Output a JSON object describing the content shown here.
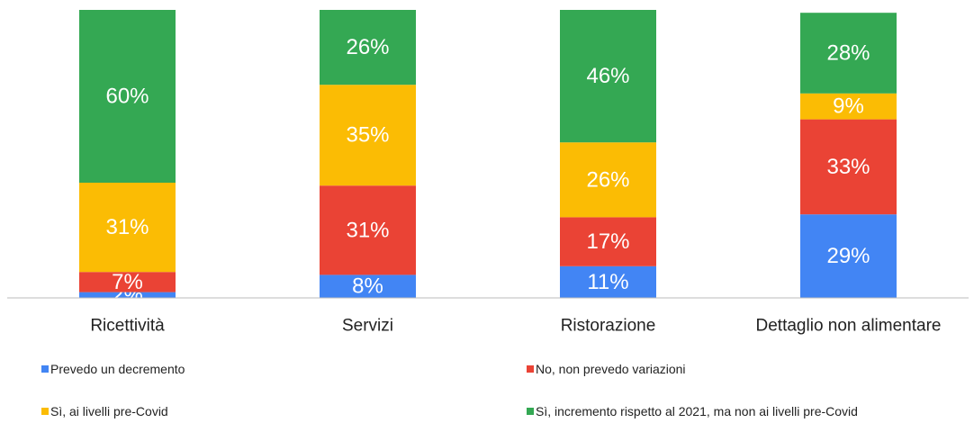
{
  "chart_data": {
    "type": "stacked_bar",
    "categories": [
      "Ricettività",
      "Servizi",
      "Ristorazione",
      "Dettaglio non alimentare"
    ],
    "series": [
      {
        "name": "Prevedo un decremento",
        "color": "#4285f4",
        "values": [
          2,
          8,
          11,
          29
        ],
        "value_labels": [
          "2%",
          "8%",
          "11%",
          "29%"
        ]
      },
      {
        "name": "No, non prevedo variazioni",
        "color": "#ea4335",
        "values": [
          7,
          31,
          17,
          33
        ],
        "value_labels": [
          "7%",
          "31%",
          "17%",
          "33%"
        ]
      },
      {
        "name": "Sì, ai livelli pre-Covid",
        "color": "#fbbc04",
        "values": [
          31,
          35,
          26,
          9
        ],
        "value_labels": [
          "31%",
          "35%",
          "26%",
          "9%"
        ]
      },
      {
        "name": "Sì, incremento rispetto al 2021, ma non ai livelli pre-Covid",
        "color": "#34a853",
        "values": [
          60,
          26,
          46,
          28
        ],
        "value_labels": [
          "60%",
          "26%",
          "46%",
          "28%"
        ]
      }
    ],
    "legend": "bottom"
  }
}
